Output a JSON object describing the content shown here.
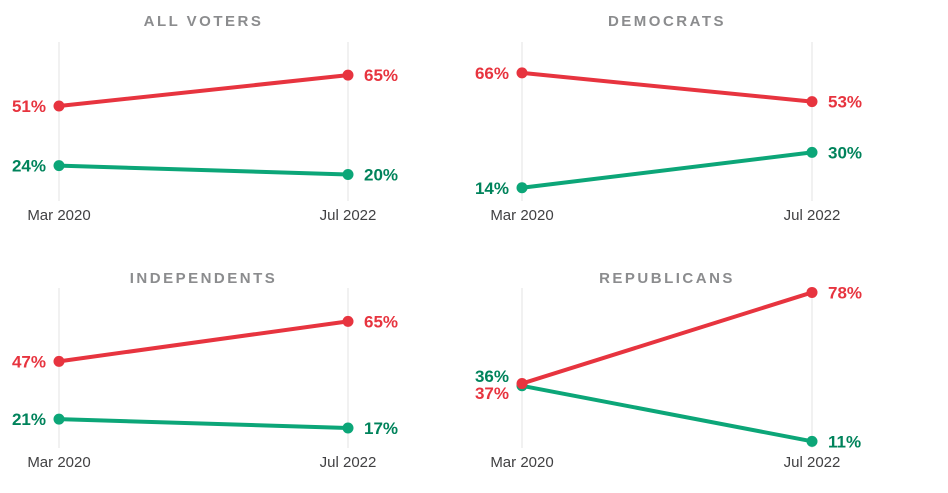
{
  "chart_data": {
    "type": "line",
    "variant": "slope-chart-small-multiples",
    "x_labels": [
      "Mar 2020",
      "Jul 2022"
    ],
    "ylim": [
      8,
      80
    ],
    "value_suffix": "%",
    "grid": "two vertical gridlines per panel, no horizontal axis",
    "legend_position": "none",
    "panels": [
      {
        "title": "ALL VOTERS",
        "series": [
          {
            "color": "red",
            "values": [
              51,
              65
            ],
            "labels": [
              "51%",
              "65%"
            ]
          },
          {
            "color": "green",
            "values": [
              24,
              20
            ],
            "labels": [
              "24%",
              "20%"
            ]
          }
        ]
      },
      {
        "title": "DEMOCRATS",
        "series": [
          {
            "color": "red",
            "values": [
              66,
              53
            ],
            "labels": [
              "66%",
              "53%"
            ]
          },
          {
            "color": "green",
            "values": [
              14,
              30
            ],
            "labels": [
              "14%",
              "30%"
            ]
          }
        ]
      },
      {
        "title": "INDEPENDENTS",
        "series": [
          {
            "color": "red",
            "values": [
              47,
              65
            ],
            "labels": [
              "47%",
              "65%"
            ]
          },
          {
            "color": "green",
            "values": [
              21,
              17
            ],
            "labels": [
              "21%",
              "17%"
            ]
          }
        ]
      },
      {
        "title": "REPUBLICANS",
        "series": [
          {
            "color": "red",
            "values": [
              37,
              78
            ],
            "labels": [
              "37%",
              "78%"
            ]
          },
          {
            "color": "green",
            "values": [
              36,
              11
            ],
            "labels": [
              "36%",
              "11%"
            ]
          }
        ]
      }
    ],
    "colors": {
      "red_line": "#e7343f",
      "red_label": "#e7343f",
      "green_line": "#0ca678",
      "green_label": "#00835b",
      "title_text": "#8b8c8e",
      "axis_text": "#414143",
      "gridline": "#e3e3e3",
      "background": "#ffffff"
    }
  }
}
